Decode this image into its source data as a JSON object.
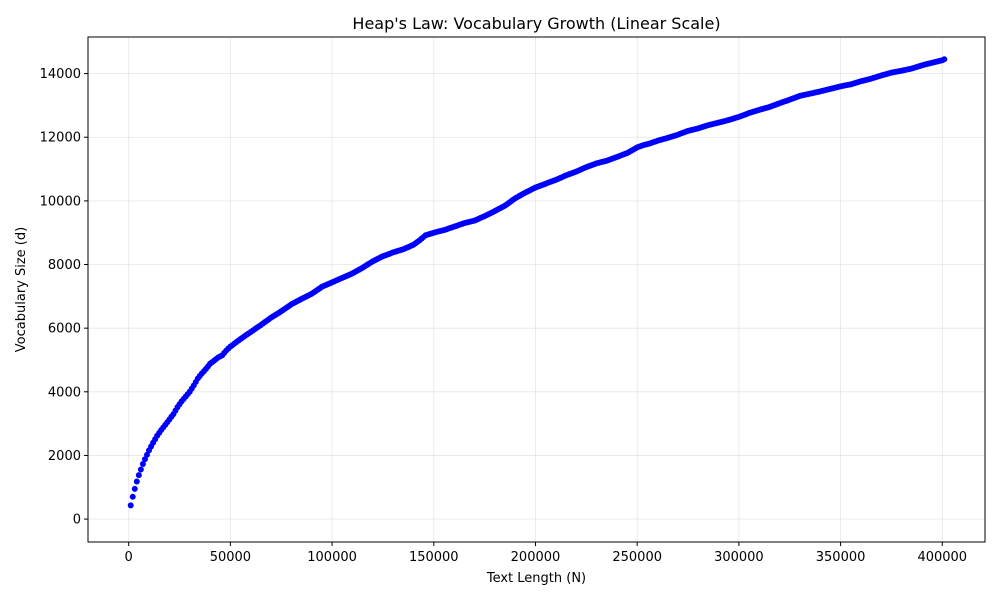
{
  "chart_data": {
    "type": "scatter",
    "title": "Heap's Law: Vocabulary Growth (Linear Scale)",
    "xlabel": "Text Length (N)",
    "ylabel": "Vocabulary Size (d)",
    "xlim": [
      -20000,
      421000
    ],
    "ylim": [
      -720,
      15150
    ],
    "xticks": [
      0,
      50000,
      100000,
      150000,
      200000,
      250000,
      300000,
      350000,
      400000
    ],
    "yticks": [
      0,
      2000,
      4000,
      6000,
      8000,
      10000,
      12000,
      14000
    ],
    "grid": true,
    "color": "#0000ff",
    "series": [
      {
        "x": [
          1000,
          2000,
          3000,
          4000,
          5000,
          6000,
          7000,
          8000,
          9000,
          10000,
          12000,
          14000,
          16000,
          18000,
          20000,
          22000,
          24000,
          26000,
          28000,
          30000,
          32000,
          34000,
          36000,
          38000,
          40000,
          42000,
          44000,
          46000,
          48000,
          50000,
          55000,
          60000,
          65000,
          70000,
          75000,
          80000,
          85000,
          90000,
          95000,
          100000,
          105000,
          110000,
          115000,
          120000,
          125000,
          130000,
          135000,
          140000,
          143000,
          146000,
          150000,
          155000,
          160000,
          165000,
          170000,
          175000,
          180000,
          185000,
          190000,
          195000,
          200000,
          205000,
          210000,
          215000,
          220000,
          225000,
          230000,
          235000,
          240000,
          245000,
          250000,
          253000,
          256000,
          260000,
          265000,
          270000,
          275000,
          280000,
          285000,
          290000,
          295000,
          300000,
          305000,
          310000,
          315000,
          320000,
          325000,
          330000,
          335000,
          340000,
          345000,
          350000,
          355000,
          360000,
          365000,
          370000,
          375000,
          380000,
          385000,
          390000,
          395000,
          400000,
          401000
        ],
        "y": [
          430,
          700,
          950,
          1180,
          1380,
          1560,
          1730,
          1880,
          2020,
          2160,
          2400,
          2620,
          2800,
          2960,
          3130,
          3300,
          3520,
          3700,
          3850,
          4000,
          4200,
          4420,
          4580,
          4720,
          4880,
          4980,
          5080,
          5150,
          5300,
          5420,
          5660,
          5880,
          6100,
          6330,
          6530,
          6750,
          6920,
          7080,
          7300,
          7440,
          7580,
          7720,
          7900,
          8100,
          8260,
          8380,
          8480,
          8620,
          8760,
          8920,
          9000,
          9080,
          9190,
          9300,
          9380,
          9520,
          9680,
          9850,
          10080,
          10260,
          10420,
          10540,
          10660,
          10800,
          10920,
          11060,
          11180,
          11260,
          11380,
          11500,
          11680,
          11750,
          11800,
          11890,
          11980,
          12080,
          12200,
          12280,
          12380,
          12460,
          12540,
          12640,
          12760,
          12860,
          12950,
          13070,
          13180,
          13300,
          13370,
          13440,
          13520,
          13600,
          13660,
          13760,
          13840,
          13940,
          14030,
          14090,
          14160,
          14260,
          14340,
          14420,
          14450
        ]
      }
    ]
  }
}
